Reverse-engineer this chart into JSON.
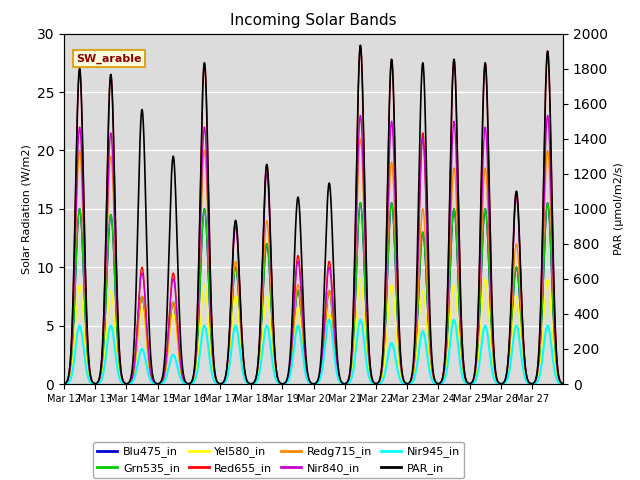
{
  "title": "Incoming Solar Bands",
  "ylabel_left": "Solar Radiation (W/m2)",
  "ylabel_right": "PAR (μmol/m2/s)",
  "annotation": "SW_arable",
  "ylim_left": [
    0,
    30
  ],
  "ylim_right": [
    0,
    2000
  ],
  "n_days": 16,
  "bg_color": "#dcdcdc",
  "series": [
    {
      "name": "Blu475_in",
      "color": "#0000dd",
      "lw": 1.0
    },
    {
      "name": "Grn535_in",
      "color": "#00cc00",
      "lw": 1.0
    },
    {
      "name": "Yel580_in",
      "color": "#ffff00",
      "lw": 1.0
    },
    {
      "name": "Red655_in",
      "color": "#ff0000",
      "lw": 1.0
    },
    {
      "name": "Redg715_in",
      "color": "#ff8800",
      "lw": 1.0
    },
    {
      "name": "Nir840_in",
      "color": "#cc00cc",
      "lw": 1.0
    },
    {
      "name": "Nir945_in",
      "color": "#00ffff",
      "lw": 1.5
    },
    {
      "name": "PAR_in",
      "color": "#000000",
      "lw": 1.2
    }
  ],
  "day_peaks": [
    {
      "day": 0,
      "red": 27.0,
      "grn": 15.0,
      "blu": 15.0,
      "yel": 8.5,
      "redg": 20.0,
      "nir840": 22.0,
      "nir945": 5.0,
      "par": 27.0
    },
    {
      "day": 1,
      "red": 26.5,
      "grn": 14.5,
      "blu": 14.5,
      "yel": 8.0,
      "redg": 19.5,
      "nir840": 21.5,
      "nir945": 5.0,
      "par": 26.5
    },
    {
      "day": 2,
      "red": 10.0,
      "grn": 7.5,
      "blu": 7.5,
      "yel": 6.5,
      "redg": 7.5,
      "nir840": 9.5,
      "nir945": 3.0,
      "par": 23.5
    },
    {
      "day": 3,
      "red": 9.5,
      "grn": 7.0,
      "blu": 7.0,
      "yel": 6.0,
      "redg": 7.0,
      "nir840": 9.0,
      "nir945": 2.5,
      "par": 19.5
    },
    {
      "day": 4,
      "red": 27.5,
      "grn": 15.0,
      "blu": 15.0,
      "yel": 8.5,
      "redg": 20.0,
      "nir840": 22.0,
      "nir945": 5.0,
      "par": 27.5
    },
    {
      "day": 5,
      "red": 14.0,
      "grn": 10.0,
      "blu": 10.0,
      "yel": 7.5,
      "redg": 10.5,
      "nir840": 13.5,
      "nir945": 5.0,
      "par": 14.0
    },
    {
      "day": 6,
      "red": 18.8,
      "grn": 12.0,
      "blu": 12.0,
      "yel": 7.5,
      "redg": 14.0,
      "nir840": 18.0,
      "nir945": 5.0,
      "par": 18.8
    },
    {
      "day": 7,
      "red": 11.0,
      "grn": 8.0,
      "blu": 8.0,
      "yel": 6.5,
      "redg": 8.5,
      "nir840": 10.5,
      "nir945": 5.0,
      "par": 16.0
    },
    {
      "day": 8,
      "red": 10.5,
      "grn": 8.0,
      "blu": 8.0,
      "yel": 6.0,
      "redg": 8.0,
      "nir840": 10.0,
      "nir945": 5.5,
      "par": 17.2
    },
    {
      "day": 9,
      "red": 29.0,
      "grn": 15.5,
      "blu": 15.5,
      "yel": 9.0,
      "redg": 21.0,
      "nir840": 23.0,
      "nir945": 5.5,
      "par": 29.0
    },
    {
      "day": 10,
      "red": 27.8,
      "grn": 15.5,
      "blu": 15.5,
      "yel": 8.5,
      "redg": 19.0,
      "nir840": 22.5,
      "nir945": 3.5,
      "par": 27.8
    },
    {
      "day": 11,
      "red": 21.5,
      "grn": 13.0,
      "blu": 13.0,
      "yel": 8.0,
      "redg": 15.0,
      "nir840": 21.0,
      "nir945": 4.5,
      "par": 27.5
    },
    {
      "day": 12,
      "red": 27.8,
      "grn": 15.0,
      "blu": 15.0,
      "yel": 8.5,
      "redg": 18.5,
      "nir840": 22.5,
      "nir945": 5.5,
      "par": 27.8
    },
    {
      "day": 13,
      "red": 27.5,
      "grn": 15.0,
      "blu": 15.0,
      "yel": 9.0,
      "redg": 18.5,
      "nir840": 22.0,
      "nir945": 5.0,
      "par": 27.5
    },
    {
      "day": 14,
      "red": 16.5,
      "grn": 10.0,
      "blu": 10.0,
      "yel": 7.5,
      "redg": 12.0,
      "nir840": 16.0,
      "nir945": 5.0,
      "par": 16.5
    },
    {
      "day": 15,
      "red": 28.5,
      "grn": 15.5,
      "blu": 15.5,
      "yel": 9.0,
      "redg": 20.0,
      "nir840": 23.0,
      "nir945": 5.0,
      "par": 28.5
    }
  ],
  "xtick_labels": [
    "Mar 12",
    "Mar 13",
    "Mar 14",
    "Mar 15",
    "Mar 16",
    "Mar 17",
    "Mar 18",
    "Mar 19",
    "Mar 20",
    "Mar 21",
    "Mar 22",
    "Mar 23",
    "Mar 24",
    "Mar 25",
    "Mar 26",
    "Mar 27"
  ],
  "legend_items": [
    {
      "name": "Blu475_in",
      "color": "#0000dd"
    },
    {
      "name": "Grn535_in",
      "color": "#00cc00"
    },
    {
      "name": "Yel580_in",
      "color": "#ffff00"
    },
    {
      "name": "Red655_in",
      "color": "#ff0000"
    },
    {
      "name": "Redg715_in",
      "color": "#ff8800"
    },
    {
      "name": "Nir840_in",
      "color": "#cc00cc"
    },
    {
      "name": "Nir945_in",
      "color": "#00ffff"
    },
    {
      "name": "PAR_in",
      "color": "#000000"
    }
  ]
}
